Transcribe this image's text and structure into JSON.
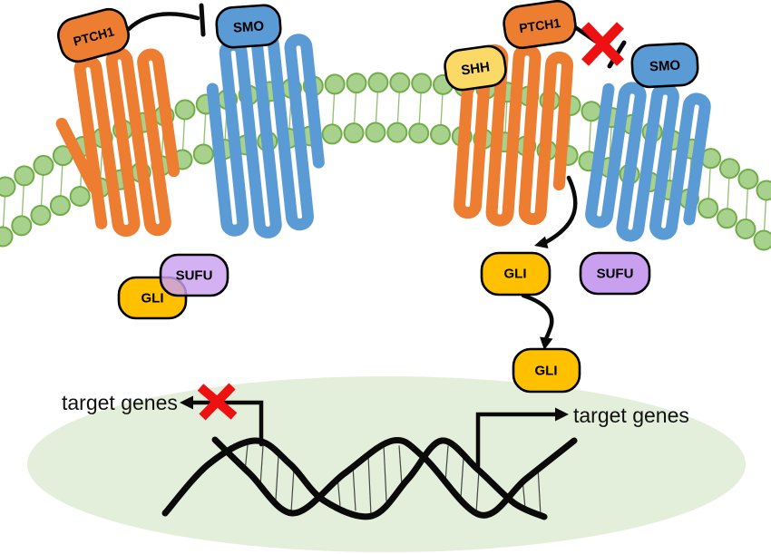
{
  "labels": {
    "ptch1_left": "PTCH1",
    "smo_left": "SMO",
    "shh": "SHH",
    "ptch1_right": "PTCH1",
    "smo_right": "SMO",
    "gli_left": "GLI",
    "sufu_left": "SUFU",
    "gli_right": "GLI",
    "sufu_right": "SUFU",
    "gli_nuclear": "GLI",
    "target_genes_left": "target genes",
    "target_genes_right": "target genes"
  },
  "colors": {
    "orange": "#ED7D31",
    "blue": "#5B9BD5",
    "yellow": "#FBD966",
    "gold": "#FFC000",
    "purple": "#C9A0F0",
    "membrane_fill": "#A9D18E",
    "membrane_stroke": "#70AD47",
    "membrane_tail": "#8FBF6F",
    "nucleus_fill": "#E4EFDB",
    "inhibition_red": "#EE1111",
    "line_black": "#0A0A0A"
  }
}
